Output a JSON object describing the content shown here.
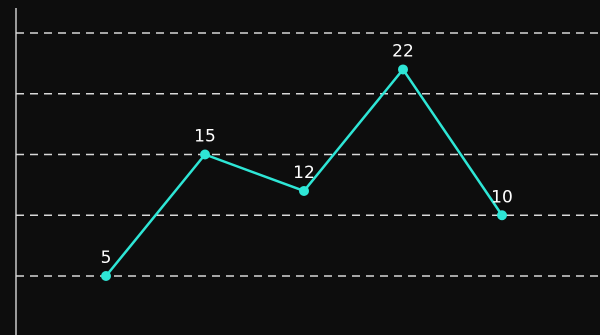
{
  "theme": {
    "background": "#0d0d0d",
    "line_color": "#2ee6d6",
    "grid_color": "#d8d8d8",
    "axis_color": "#d8d8d8",
    "label_color": "#ffffff"
  },
  "chart_data": {
    "type": "line",
    "title": "",
    "xlabel": "",
    "ylabel": "",
    "x": [
      1,
      2,
      3,
      4,
      5
    ],
    "series": [
      {
        "values": [
          5,
          15,
          12,
          22,
          10
        ]
      }
    ],
    "data_labels": [
      "5",
      "15",
      "12",
      "22",
      "10"
    ],
    "ylim": [
      5,
      25
    ],
    "grid": true,
    "grid_style": "dashed",
    "legend": "none"
  }
}
